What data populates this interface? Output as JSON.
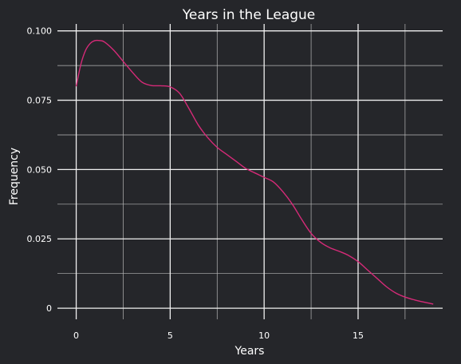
{
  "chart_data": {
    "type": "line",
    "title": "Years in the League",
    "xlabel": "Years",
    "ylabel": "Frequency",
    "xlim": [
      -1,
      19.5
    ],
    "ylim": [
      -0.004,
      0.1025
    ],
    "x_ticks": [
      0,
      5,
      10,
      15
    ],
    "x_tick_labels": [
      "0",
      "5",
      "10",
      "15"
    ],
    "x_minor_ticks": [
      2.5,
      7.5,
      12.5,
      17.5
    ],
    "y_ticks": [
      0,
      0.025,
      0.05,
      0.075,
      0.1
    ],
    "y_tick_labels": [
      "0",
      "0.025",
      "0.050",
      "0.075",
      "0.100"
    ],
    "y_minor_ticks": [
      0.0125,
      0.0375,
      0.0625,
      0.0875
    ],
    "grid": true,
    "line_color": "#d62a78",
    "background_color": "#25262a",
    "series": [
      {
        "x": [
          0,
          0.25,
          0.5,
          0.75,
          1.0,
          1.25,
          1.5,
          2.0,
          2.5,
          3.0,
          3.5,
          4.0,
          4.5,
          5.0,
          5.5,
          6.0,
          6.5,
          7.0,
          7.5,
          8.0,
          8.5,
          9.0,
          9.5,
          10.0,
          10.5,
          11.0,
          11.5,
          12.0,
          12.5,
          13.0,
          13.5,
          14.0,
          14.5,
          15.0,
          15.5,
          16.0,
          16.5,
          17.0,
          17.5,
          18.0,
          18.5,
          19.0
        ],
        "y": [
          0.08,
          0.088,
          0.093,
          0.0955,
          0.0965,
          0.0965,
          0.096,
          0.093,
          0.089,
          0.085,
          0.0815,
          0.0803,
          0.0802,
          0.0798,
          0.0775,
          0.072,
          0.066,
          0.0615,
          0.058,
          0.0555,
          0.053,
          0.0505,
          0.0488,
          0.0472,
          0.0455,
          0.042,
          0.0375,
          0.032,
          0.027,
          0.0238,
          0.0218,
          0.0205,
          0.019,
          0.0168,
          0.0138,
          0.0108,
          0.0078,
          0.0055,
          0.004,
          0.003,
          0.0022,
          0.0015
        ]
      }
    ]
  }
}
